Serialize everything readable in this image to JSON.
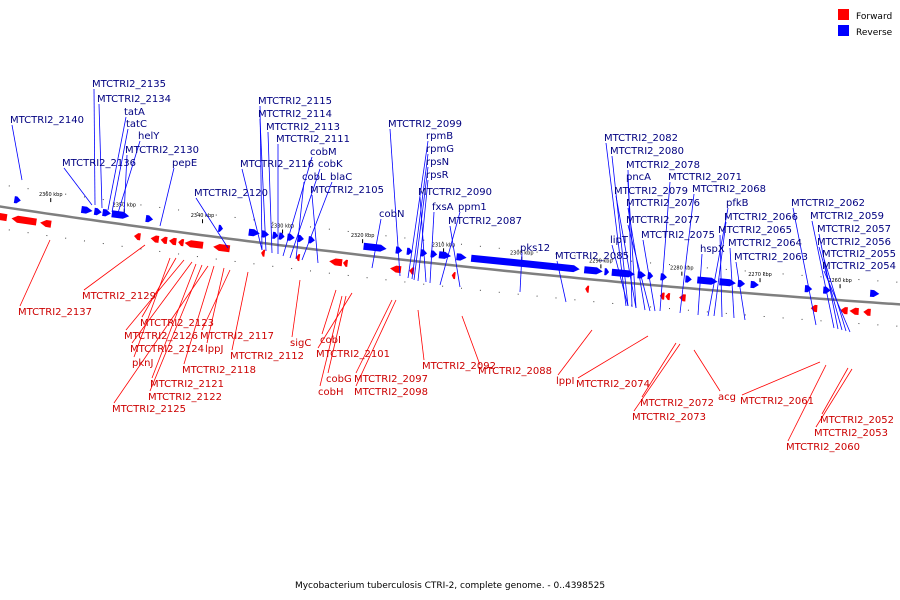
{
  "caption": "Mycobacterium tuberculosis CTRI-2, complete genome. - 0..4398525",
  "legend": [
    {
      "label": "Forward",
      "color": "#ff0000"
    },
    {
      "label": "Reverse",
      "color": "#0000ff"
    }
  ],
  "colors": {
    "forward": "#ff0000",
    "reverse": "#0000ff",
    "backbone": "#7f7f7f",
    "forward_label": "#cc0000",
    "reverse_label": "#000080"
  },
  "ticks": [
    "2360 kbp",
    "2350 kbp",
    "2340 kbp",
    "2330 kbp",
    "2320 kbp",
    "2310 kbp",
    "2300 kbp",
    "2290 kbp",
    "2280 kbp",
    "2270 kbp",
    "2260 kbp"
  ],
  "reverse_labels": [
    "MTCTRI2_2140",
    "MTCTRI2_2135",
    "MTCTRI2_2134",
    "tatA",
    "tatC",
    "helY",
    "MTCTRI2_2130",
    "MTCTRI2_2136",
    "pepE",
    "MTCTRI2_2120",
    "MTCTRI2_2115",
    "MTCTRI2_2114",
    "MTCTRI2_2113",
    "MTCTRI2_2111",
    "cobM",
    "MTCTRI2_2116",
    "cobK",
    "cobL",
    "blaC",
    "MTCTRI2_2105",
    "cobN",
    "MTCTRI2_2099",
    "rpmB",
    "rpmG",
    "rpsN",
    "rpsR",
    "MTCTRI2_2090",
    "fxsA",
    "ppm1",
    "MTCTRI2_2087",
    "pks12",
    "MTCTRI2_2085",
    "MTCTRI2_2082",
    "MTCTRI2_2080",
    "MTCTRI2_2078",
    "pncA",
    "MTCTRI2_2071",
    "MTCTRI2_2079",
    "MTCTRI2_2068",
    "MTCTRI2_2076",
    "pfkB",
    "lipT",
    "MTCTRI2_2077",
    "MTCTRI2_2066",
    "MTCTRI2_2075",
    "MTCTRI2_2065",
    "hspX",
    "MTCTRI2_2064",
    "MTCTRI2_2063",
    "MTCTRI2_2062",
    "MTCTRI2_2059",
    "MTCTRI2_2057",
    "MTCTRI2_2056",
    "MTCTRI2_2055",
    "MTCTRI2_2054"
  ],
  "forward_labels": [
    "MTCTRI2_2137",
    "MTCTRI2_2129",
    "MTCTRI2_2123",
    "MTCTRI2_2126",
    "MTCTRI2_2117",
    "MTCTRI2_2124",
    "lppJ",
    "pknJ",
    "MTCTRI2_2118",
    "MTCTRI2_2121",
    "MTCTRI2_2122",
    "MTCTRI2_2125",
    "MTCTRI2_2112",
    "sigC",
    "cobI",
    "MTCTRI2_2101",
    "cobG",
    "cobH",
    "MTCTRI2_2097",
    "MTCTRI2_2098",
    "MTCTRI2_2092",
    "MTCTRI2_2088",
    "lppI",
    "MTCTRI2_2074",
    "MTCTRI2_2072",
    "MTCTRI2_2073",
    "acg",
    "MTCTRI2_2061",
    "MTCTRI2_2052",
    "MTCTRI2_2053",
    "MTCTRI2_2060"
  ]
}
